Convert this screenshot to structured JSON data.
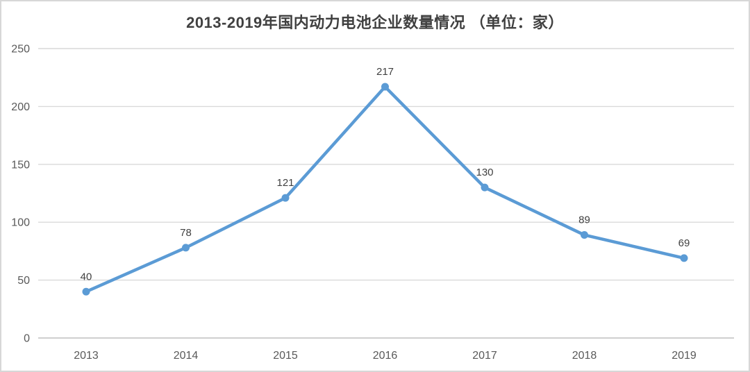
{
  "chart_data": {
    "type": "line",
    "title": "2013-2019年国内动力电池企业数量情况 （单位：家）",
    "categories": [
      "2013",
      "2014",
      "2015",
      "2016",
      "2017",
      "2018",
      "2019"
    ],
    "values": [
      40,
      78,
      121,
      217,
      130,
      89,
      69
    ],
    "xlabel": "",
    "ylabel": "",
    "ylim": [
      0,
      250
    ],
    "yticks": [
      0,
      50,
      100,
      150,
      200,
      250
    ],
    "grid": true,
    "legend_position": "none",
    "colors": {
      "line": "#5b9bd5",
      "marker": "#5b9bd5",
      "gridline": "#d9d9d9",
      "axis_line": "#bfbfbf",
      "tick_label": "#595959",
      "data_label": "#404040",
      "title": "#404040",
      "card_border": "#d7d7d7",
      "background": "#ffffff"
    }
  }
}
